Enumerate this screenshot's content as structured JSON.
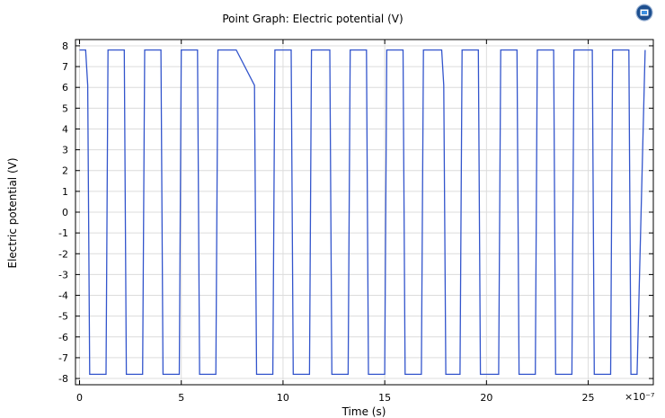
{
  "chart_data": {
    "type": "line",
    "title": "Point Graph: Electric potential (V)",
    "xlabel": "Time (s)",
    "ylabel": "Electric potential (V)",
    "x_multiplier": "×10⁻⁷",
    "xlim": [
      -0.2,
      28.2
    ],
    "ylim": [
      -8.3,
      8.3
    ],
    "x_ticks": [
      0,
      5,
      10,
      15,
      20,
      25
    ],
    "x_tick_labels": [
      "0",
      "5",
      "10",
      "15",
      "20",
      "25"
    ],
    "y_ticks": [
      8,
      7,
      6,
      5,
      4,
      3,
      2,
      1,
      0,
      -1,
      -2,
      -3,
      -4,
      -5,
      -6,
      -7,
      -8
    ],
    "y_tick_labels": [
      "8",
      "7",
      "6",
      "5",
      "4",
      "3",
      "2",
      "1",
      "0",
      "-1",
      "-2",
      "-3",
      "-4",
      "-5",
      "-6",
      "-7",
      "-8"
    ],
    "grid": true,
    "series": [
      {
        "color": "#3355cc",
        "x": [
          0,
          0.3,
          0.4,
          0.5,
          1.3,
          1.4,
          1.5,
          2.2,
          2.3,
          3.1,
          3.2,
          4.0,
          4.1,
          4.9,
          5.0,
          5.8,
          5.9,
          6.7,
          6.8,
          7.6,
          7.7,
          8.6,
          8.7,
          8.8,
          9.5,
          9.6,
          10.4,
          10.5,
          11.3,
          11.4,
          12.3,
          12.4,
          13.2,
          13.3,
          14.1,
          14.2,
          15.0,
          15.1,
          15.9,
          16.0,
          16.8,
          16.9,
          17.8,
          17.9,
          18.0,
          18.7,
          18.8,
          19.6,
          19.7,
          20.6,
          20.7,
          21.5,
          21.6,
          22.4,
          22.5,
          23.3,
          23.4,
          24.2,
          24.3,
          25.2,
          25.3,
          26.1,
          26.2,
          27.0,
          27.1,
          27.4,
          27.8
        ],
        "y": [
          7.8,
          7.8,
          6.1,
          -7.8,
          -7.8,
          7.8,
          7.8,
          7.8,
          -7.8,
          -7.8,
          7.8,
          7.8,
          -7.8,
          -7.8,
          7.8,
          7.8,
          -7.8,
          -7.8,
          7.8,
          7.8,
          7.8,
          6.1,
          -7.8,
          -7.8,
          -7.8,
          7.8,
          7.8,
          -7.8,
          -7.8,
          7.8,
          7.8,
          -7.8,
          -7.8,
          7.8,
          7.8,
          -7.8,
          -7.8,
          7.8,
          7.8,
          -7.8,
          -7.8,
          7.8,
          7.8,
          6.1,
          -7.8,
          -7.8,
          7.8,
          7.8,
          -7.8,
          -7.8,
          7.8,
          7.8,
          -7.8,
          -7.8,
          7.8,
          7.8,
          -7.8,
          -7.8,
          7.8,
          7.8,
          -7.8,
          -7.8,
          7.8,
          7.8,
          -7.8,
          -7.8,
          7.8
        ]
      }
    ]
  }
}
